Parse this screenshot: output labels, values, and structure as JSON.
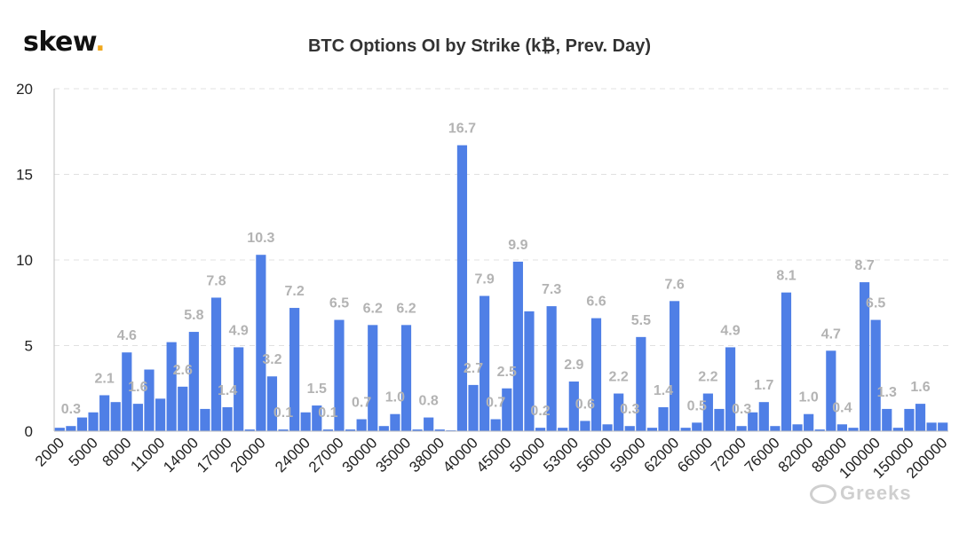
{
  "logo": {
    "text": "skew",
    "dot": "."
  },
  "watermark": {
    "text": "Greeks"
  },
  "chart_data": {
    "type": "bar",
    "title": "BTC Options OI by Strike (k₿, Prev. Day)",
    "xlabel": "",
    "ylabel": "",
    "ylim": [
      0,
      20
    ],
    "yticks": [
      0,
      5,
      10,
      15,
      20
    ],
    "grid": true,
    "bar_color": "#4f7fe6",
    "label_color": "#b3b3b3",
    "xtick_labels": [
      "2000",
      "5000",
      "8000",
      "11000",
      "14000",
      "17000",
      "20000",
      "24000",
      "27000",
      "30000",
      "35000",
      "38000",
      "40000",
      "45000",
      "50000",
      "53000",
      "56000",
      "59000",
      "62000",
      "66000",
      "72000",
      "76000",
      "82000",
      "88000",
      "100000",
      "150000",
      "200000"
    ],
    "xtick_positions": [
      0,
      3,
      6,
      9,
      12,
      15,
      18,
      22,
      25,
      28,
      31,
      34,
      37,
      40,
      43,
      46,
      49,
      52,
      55,
      58,
      61,
      64,
      67,
      70,
      73,
      76,
      79
    ],
    "values": [
      0.2,
      0.3,
      0.8,
      1.1,
      2.1,
      1.7,
      4.6,
      1.6,
      3.6,
      1.9,
      5.2,
      2.6,
      5.8,
      1.3,
      7.8,
      1.4,
      4.9,
      0.1,
      10.3,
      3.2,
      0.1,
      7.2,
      1.1,
      1.5,
      0.1,
      6.5,
      0.1,
      0.7,
      6.2,
      0.3,
      1.0,
      6.2,
      0.1,
      0.8,
      0.1,
      0.05,
      16.7,
      2.7,
      7.9,
      0.7,
      2.5,
      9.9,
      7.0,
      0.2,
      7.3,
      0.2,
      2.9,
      0.6,
      6.6,
      0.4,
      2.2,
      0.3,
      5.5,
      0.2,
      1.4,
      7.6,
      0.2,
      0.5,
      2.2,
      1.3,
      4.9,
      0.3,
      1.1,
      1.7,
      0.3,
      8.1,
      0.4,
      1.0,
      0.1,
      4.7,
      0.4,
      0.2,
      8.7,
      6.5,
      1.3,
      0.2,
      1.3,
      1.6,
      0.5,
      0.5
    ],
    "data_labels": [
      {
        "i": 1,
        "text": "0.3"
      },
      {
        "i": 4,
        "text": "2.1"
      },
      {
        "i": 6,
        "text": "4.6"
      },
      {
        "i": 7,
        "text": "1.6"
      },
      {
        "i": 11,
        "text": "2.6"
      },
      {
        "i": 12,
        "text": "5.8"
      },
      {
        "i": 14,
        "text": "7.8"
      },
      {
        "i": 15,
        "text": "1.4"
      },
      {
        "i": 16,
        "text": "4.9"
      },
      {
        "i": 18,
        "text": "10.3"
      },
      {
        "i": 19,
        "text": "3.2"
      },
      {
        "i": 20,
        "text": "0.1"
      },
      {
        "i": 21,
        "text": "7.2"
      },
      {
        "i": 23,
        "text": "1.5"
      },
      {
        "i": 24,
        "text": "0.1"
      },
      {
        "i": 25,
        "text": "6.5"
      },
      {
        "i": 27,
        "text": "0.7"
      },
      {
        "i": 28,
        "text": "6.2"
      },
      {
        "i": 30,
        "text": "1.0"
      },
      {
        "i": 31,
        "text": "6.2"
      },
      {
        "i": 33,
        "text": "0.8"
      },
      {
        "i": 36,
        "text": "16.7"
      },
      {
        "i": 37,
        "text": "2.7"
      },
      {
        "i": 38,
        "text": "7.9"
      },
      {
        "i": 39,
        "text": "0.7"
      },
      {
        "i": 40,
        "text": "2.5"
      },
      {
        "i": 41,
        "text": "9.9"
      },
      {
        "i": 43,
        "text": "0.2"
      },
      {
        "i": 44,
        "text": "7.3"
      },
      {
        "i": 46,
        "text": "2.9"
      },
      {
        "i": 47,
        "text": "0.6"
      },
      {
        "i": 48,
        "text": "6.6"
      },
      {
        "i": 50,
        "text": "2.2"
      },
      {
        "i": 51,
        "text": "0.3"
      },
      {
        "i": 52,
        "text": "5.5"
      },
      {
        "i": 54,
        "text": "1.4"
      },
      {
        "i": 55,
        "text": "7.6"
      },
      {
        "i": 57,
        "text": "0.5"
      },
      {
        "i": 58,
        "text": "2.2"
      },
      {
        "i": 60,
        "text": "4.9"
      },
      {
        "i": 61,
        "text": "0.3"
      },
      {
        "i": 63,
        "text": "1.7"
      },
      {
        "i": 65,
        "text": "8.1"
      },
      {
        "i": 67,
        "text": "1.0"
      },
      {
        "i": 69,
        "text": "4.7"
      },
      {
        "i": 70,
        "text": "0.4"
      },
      {
        "i": 72,
        "text": "8.7"
      },
      {
        "i": 73,
        "text": "6.5"
      },
      {
        "i": 74,
        "text": "1.3"
      },
      {
        "i": 77,
        "text": "1.6"
      }
    ]
  }
}
